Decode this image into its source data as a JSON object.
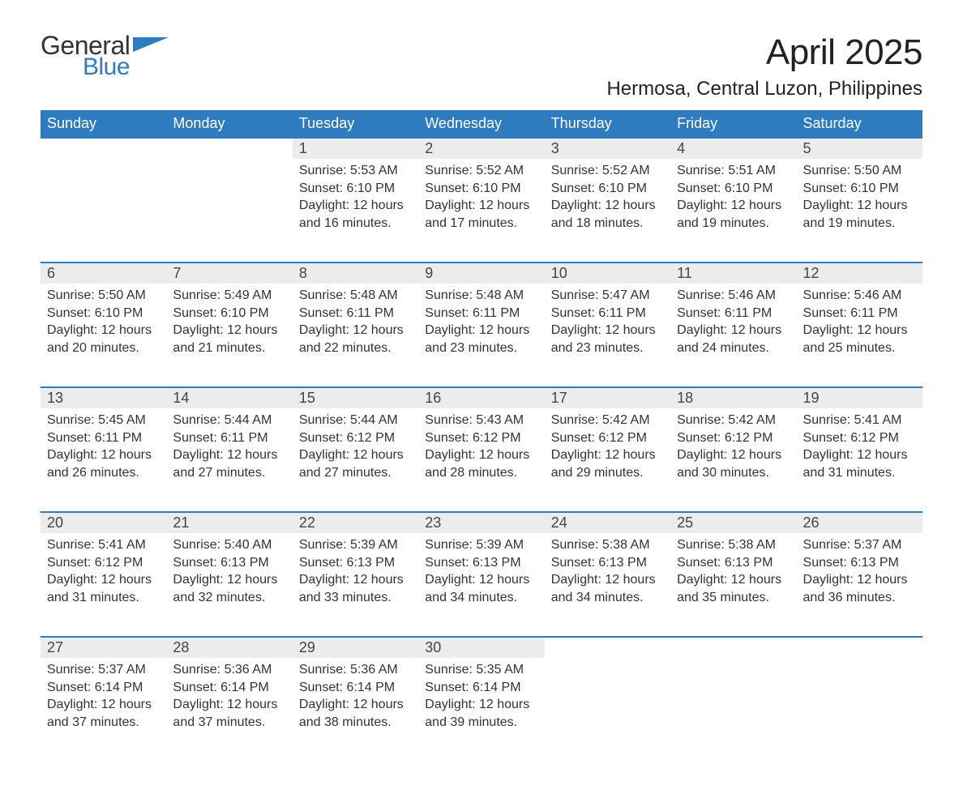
{
  "brand": {
    "word1": "General",
    "word2": "Blue",
    "word1_color": "#333333",
    "word2_color": "#2f7bbf",
    "flag_color": "#2f7bbf"
  },
  "title": "April 2025",
  "location": "Hermosa, Central Luzon, Philippines",
  "colors": {
    "header_bg": "#2f7bbf",
    "header_text": "#ffffff",
    "daynum_bg": "#ececec",
    "row_border": "#2f7bbf",
    "body_text": "#333333",
    "page_bg": "#ffffff"
  },
  "weekdays": [
    "Sunday",
    "Monday",
    "Tuesday",
    "Wednesday",
    "Thursday",
    "Friday",
    "Saturday"
  ],
  "weeks": [
    [
      null,
      null,
      {
        "n": "1",
        "sunrise": "Sunrise: 5:53 AM",
        "sunset": "Sunset: 6:10 PM",
        "day1": "Daylight: 12 hours",
        "day2": "and 16 minutes."
      },
      {
        "n": "2",
        "sunrise": "Sunrise: 5:52 AM",
        "sunset": "Sunset: 6:10 PM",
        "day1": "Daylight: 12 hours",
        "day2": "and 17 minutes."
      },
      {
        "n": "3",
        "sunrise": "Sunrise: 5:52 AM",
        "sunset": "Sunset: 6:10 PM",
        "day1": "Daylight: 12 hours",
        "day2": "and 18 minutes."
      },
      {
        "n": "4",
        "sunrise": "Sunrise: 5:51 AM",
        "sunset": "Sunset: 6:10 PM",
        "day1": "Daylight: 12 hours",
        "day2": "and 19 minutes."
      },
      {
        "n": "5",
        "sunrise": "Sunrise: 5:50 AM",
        "sunset": "Sunset: 6:10 PM",
        "day1": "Daylight: 12 hours",
        "day2": "and 19 minutes."
      }
    ],
    [
      {
        "n": "6",
        "sunrise": "Sunrise: 5:50 AM",
        "sunset": "Sunset: 6:10 PM",
        "day1": "Daylight: 12 hours",
        "day2": "and 20 minutes."
      },
      {
        "n": "7",
        "sunrise": "Sunrise: 5:49 AM",
        "sunset": "Sunset: 6:10 PM",
        "day1": "Daylight: 12 hours",
        "day2": "and 21 minutes."
      },
      {
        "n": "8",
        "sunrise": "Sunrise: 5:48 AM",
        "sunset": "Sunset: 6:11 PM",
        "day1": "Daylight: 12 hours",
        "day2": "and 22 minutes."
      },
      {
        "n": "9",
        "sunrise": "Sunrise: 5:48 AM",
        "sunset": "Sunset: 6:11 PM",
        "day1": "Daylight: 12 hours",
        "day2": "and 23 minutes."
      },
      {
        "n": "10",
        "sunrise": "Sunrise: 5:47 AM",
        "sunset": "Sunset: 6:11 PM",
        "day1": "Daylight: 12 hours",
        "day2": "and 23 minutes."
      },
      {
        "n": "11",
        "sunrise": "Sunrise: 5:46 AM",
        "sunset": "Sunset: 6:11 PM",
        "day1": "Daylight: 12 hours",
        "day2": "and 24 minutes."
      },
      {
        "n": "12",
        "sunrise": "Sunrise: 5:46 AM",
        "sunset": "Sunset: 6:11 PM",
        "day1": "Daylight: 12 hours",
        "day2": "and 25 minutes."
      }
    ],
    [
      {
        "n": "13",
        "sunrise": "Sunrise: 5:45 AM",
        "sunset": "Sunset: 6:11 PM",
        "day1": "Daylight: 12 hours",
        "day2": "and 26 minutes."
      },
      {
        "n": "14",
        "sunrise": "Sunrise: 5:44 AM",
        "sunset": "Sunset: 6:11 PM",
        "day1": "Daylight: 12 hours",
        "day2": "and 27 minutes."
      },
      {
        "n": "15",
        "sunrise": "Sunrise: 5:44 AM",
        "sunset": "Sunset: 6:12 PM",
        "day1": "Daylight: 12 hours",
        "day2": "and 27 minutes."
      },
      {
        "n": "16",
        "sunrise": "Sunrise: 5:43 AM",
        "sunset": "Sunset: 6:12 PM",
        "day1": "Daylight: 12 hours",
        "day2": "and 28 minutes."
      },
      {
        "n": "17",
        "sunrise": "Sunrise: 5:42 AM",
        "sunset": "Sunset: 6:12 PM",
        "day1": "Daylight: 12 hours",
        "day2": "and 29 minutes."
      },
      {
        "n": "18",
        "sunrise": "Sunrise: 5:42 AM",
        "sunset": "Sunset: 6:12 PM",
        "day1": "Daylight: 12 hours",
        "day2": "and 30 minutes."
      },
      {
        "n": "19",
        "sunrise": "Sunrise: 5:41 AM",
        "sunset": "Sunset: 6:12 PM",
        "day1": "Daylight: 12 hours",
        "day2": "and 31 minutes."
      }
    ],
    [
      {
        "n": "20",
        "sunrise": "Sunrise: 5:41 AM",
        "sunset": "Sunset: 6:12 PM",
        "day1": "Daylight: 12 hours",
        "day2": "and 31 minutes."
      },
      {
        "n": "21",
        "sunrise": "Sunrise: 5:40 AM",
        "sunset": "Sunset: 6:13 PM",
        "day1": "Daylight: 12 hours",
        "day2": "and 32 minutes."
      },
      {
        "n": "22",
        "sunrise": "Sunrise: 5:39 AM",
        "sunset": "Sunset: 6:13 PM",
        "day1": "Daylight: 12 hours",
        "day2": "and 33 minutes."
      },
      {
        "n": "23",
        "sunrise": "Sunrise: 5:39 AM",
        "sunset": "Sunset: 6:13 PM",
        "day1": "Daylight: 12 hours",
        "day2": "and 34 minutes."
      },
      {
        "n": "24",
        "sunrise": "Sunrise: 5:38 AM",
        "sunset": "Sunset: 6:13 PM",
        "day1": "Daylight: 12 hours",
        "day2": "and 34 minutes."
      },
      {
        "n": "25",
        "sunrise": "Sunrise: 5:38 AM",
        "sunset": "Sunset: 6:13 PM",
        "day1": "Daylight: 12 hours",
        "day2": "and 35 minutes."
      },
      {
        "n": "26",
        "sunrise": "Sunrise: 5:37 AM",
        "sunset": "Sunset: 6:13 PM",
        "day1": "Daylight: 12 hours",
        "day2": "and 36 minutes."
      }
    ],
    [
      {
        "n": "27",
        "sunrise": "Sunrise: 5:37 AM",
        "sunset": "Sunset: 6:14 PM",
        "day1": "Daylight: 12 hours",
        "day2": "and 37 minutes."
      },
      {
        "n": "28",
        "sunrise": "Sunrise: 5:36 AM",
        "sunset": "Sunset: 6:14 PM",
        "day1": "Daylight: 12 hours",
        "day2": "and 37 minutes."
      },
      {
        "n": "29",
        "sunrise": "Sunrise: 5:36 AM",
        "sunset": "Sunset: 6:14 PM",
        "day1": "Daylight: 12 hours",
        "day2": "and 38 minutes."
      },
      {
        "n": "30",
        "sunrise": "Sunrise: 5:35 AM",
        "sunset": "Sunset: 6:14 PM",
        "day1": "Daylight: 12 hours",
        "day2": "and 39 minutes."
      },
      null,
      null,
      null
    ]
  ]
}
